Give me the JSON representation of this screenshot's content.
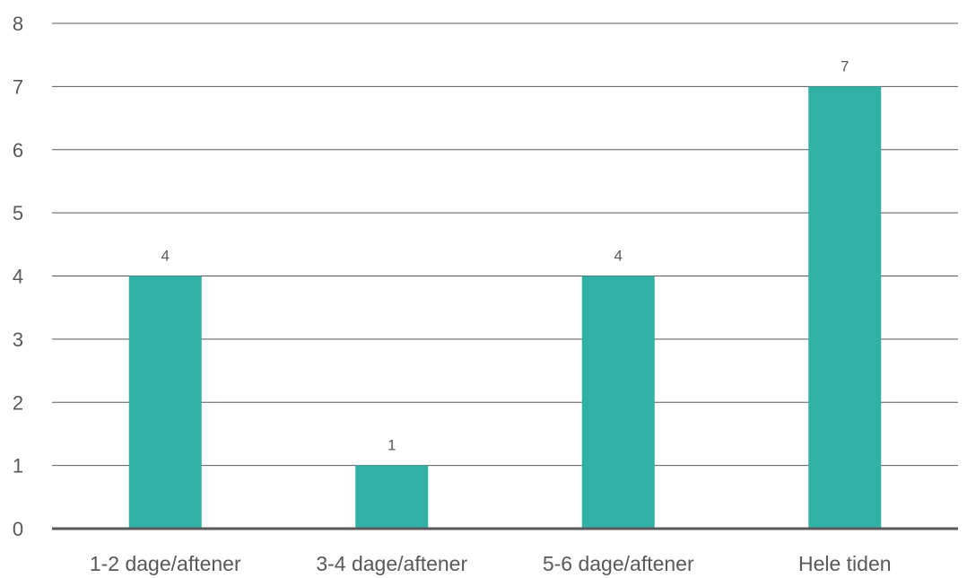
{
  "chart_data": {
    "type": "bar",
    "title": "",
    "xlabel": "",
    "ylabel": "",
    "categories": [
      "1-2 dage/aftener",
      "3-4 dage/aftener",
      "5-6 dage/aftener",
      "Hele tiden"
    ],
    "values": [
      4,
      1,
      4,
      7
    ],
    "data_labels": [
      "4",
      "1",
      "4",
      "7"
    ],
    "ylim": [
      0,
      8
    ],
    "yticks": [
      "0",
      "1",
      "2",
      "3",
      "4",
      "5",
      "6",
      "7",
      "8"
    ],
    "grid": true,
    "legend": "none",
    "bar_color": "#31b0a6",
    "text_color": "#595959"
  }
}
